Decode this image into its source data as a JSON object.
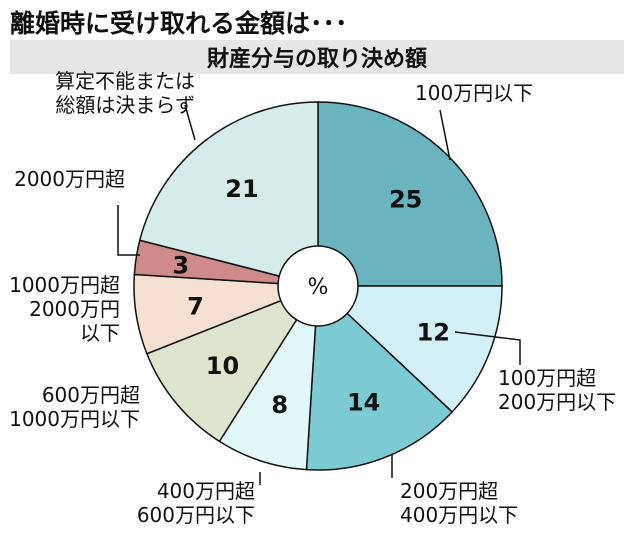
{
  "title": "離婚時に受け取れる金額は･･･",
  "chart_data": {
    "type": "pie",
    "title": "財産分与の取り決め額",
    "center_label": "%",
    "slices": [
      {
        "label": "100万円以下",
        "value": 25,
        "color": "#6ab4bf"
      },
      {
        "label": "100万円超\n200万円以下",
        "value": 12,
        "color": "#d2f0f5"
      },
      {
        "label": "200万円超\n400万円以下",
        "value": 14,
        "color": "#7ccbd3"
      },
      {
        "label": "400万円超\n600万円以下",
        "value": 8,
        "color": "#e2f7f7"
      },
      {
        "label": "600万円超\n1000万円以下",
        "value": 10,
        "color": "#dde5cf"
      },
      {
        "label": "1000万円超\n2000万円\n以下",
        "value": 7,
        "color": "#f5e0d2"
      },
      {
        "label": "2000万円超",
        "value": 3,
        "color": "#cf8a8a"
      },
      {
        "label": "算定不能または\n総額は決まらず",
        "value": 21,
        "color": "#d5ecea"
      }
    ]
  }
}
